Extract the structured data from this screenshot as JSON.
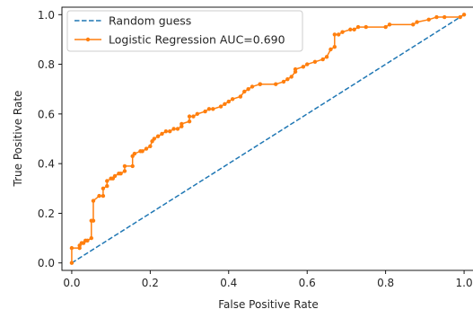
{
  "chart_data": {
    "type": "line",
    "xlabel": "False Positive Rate",
    "ylabel": "True Positive Rate",
    "xlim": [
      -0.025,
      1.025
    ],
    "ylim": [
      -0.03,
      1.03
    ],
    "xticks": [
      0.0,
      0.2,
      0.4,
      0.6,
      0.8,
      1.0
    ],
    "yticks": [
      0.0,
      0.2,
      0.4,
      0.6,
      0.8,
      1.0
    ],
    "xtick_labels": [
      "0.0",
      "0.2",
      "0.4",
      "0.6",
      "0.8",
      "1.0"
    ],
    "ytick_labels": [
      "0.0",
      "0.2",
      "0.4",
      "0.6",
      "0.8",
      "1.0"
    ],
    "grid": false,
    "legend_position": "upper-left",
    "series": [
      {
        "name": "Random guess",
        "style": "dashed",
        "color": "#1f77b4",
        "markers": false,
        "x": [
          0.0,
          1.0
        ],
        "y": [
          0.0,
          1.0
        ]
      },
      {
        "name": "Logistic Regression AUC=0.690",
        "style": "solid",
        "color": "#ff7f0e",
        "markers": true,
        "x": [
          0.0,
          0.0,
          0.02,
          0.02,
          0.025,
          0.03,
          0.035,
          0.04,
          0.05,
          0.05,
          0.055,
          0.055,
          0.07,
          0.08,
          0.08,
          0.09,
          0.09,
          0.1,
          0.105,
          0.11,
          0.12,
          0.125,
          0.135,
          0.135,
          0.155,
          0.155,
          0.16,
          0.175,
          0.18,
          0.19,
          0.2,
          0.205,
          0.21,
          0.22,
          0.23,
          0.24,
          0.25,
          0.26,
          0.27,
          0.28,
          0.28,
          0.3,
          0.3,
          0.31,
          0.32,
          0.34,
          0.35,
          0.36,
          0.38,
          0.39,
          0.4,
          0.41,
          0.43,
          0.44,
          0.45,
          0.46,
          0.48,
          0.48,
          0.52,
          0.54,
          0.55,
          0.56,
          0.57,
          0.57,
          0.59,
          0.6,
          0.62,
          0.64,
          0.65,
          0.66,
          0.67,
          0.67,
          0.68,
          0.69,
          0.71,
          0.72,
          0.73,
          0.75,
          0.8,
          0.81,
          0.87,
          0.88,
          0.91,
          0.93,
          0.95,
          0.99,
          1.0
        ],
        "y": [
          0.0,
          0.06,
          0.06,
          0.07,
          0.08,
          0.08,
          0.09,
          0.09,
          0.1,
          0.17,
          0.17,
          0.25,
          0.27,
          0.27,
          0.3,
          0.31,
          0.33,
          0.34,
          0.34,
          0.35,
          0.36,
          0.36,
          0.37,
          0.39,
          0.39,
          0.43,
          0.44,
          0.45,
          0.45,
          0.46,
          0.47,
          0.49,
          0.5,
          0.51,
          0.52,
          0.53,
          0.53,
          0.54,
          0.54,
          0.55,
          0.56,
          0.57,
          0.59,
          0.59,
          0.6,
          0.61,
          0.62,
          0.62,
          0.63,
          0.64,
          0.65,
          0.66,
          0.67,
          0.69,
          0.7,
          0.71,
          0.72,
          0.72,
          0.72,
          0.73,
          0.74,
          0.75,
          0.77,
          0.78,
          0.79,
          0.8,
          0.81,
          0.82,
          0.83,
          0.86,
          0.87,
          0.92,
          0.92,
          0.93,
          0.94,
          0.94,
          0.95,
          0.95,
          0.95,
          0.96,
          0.96,
          0.97,
          0.98,
          0.99,
          0.99,
          0.99,
          1.0
        ]
      }
    ]
  }
}
